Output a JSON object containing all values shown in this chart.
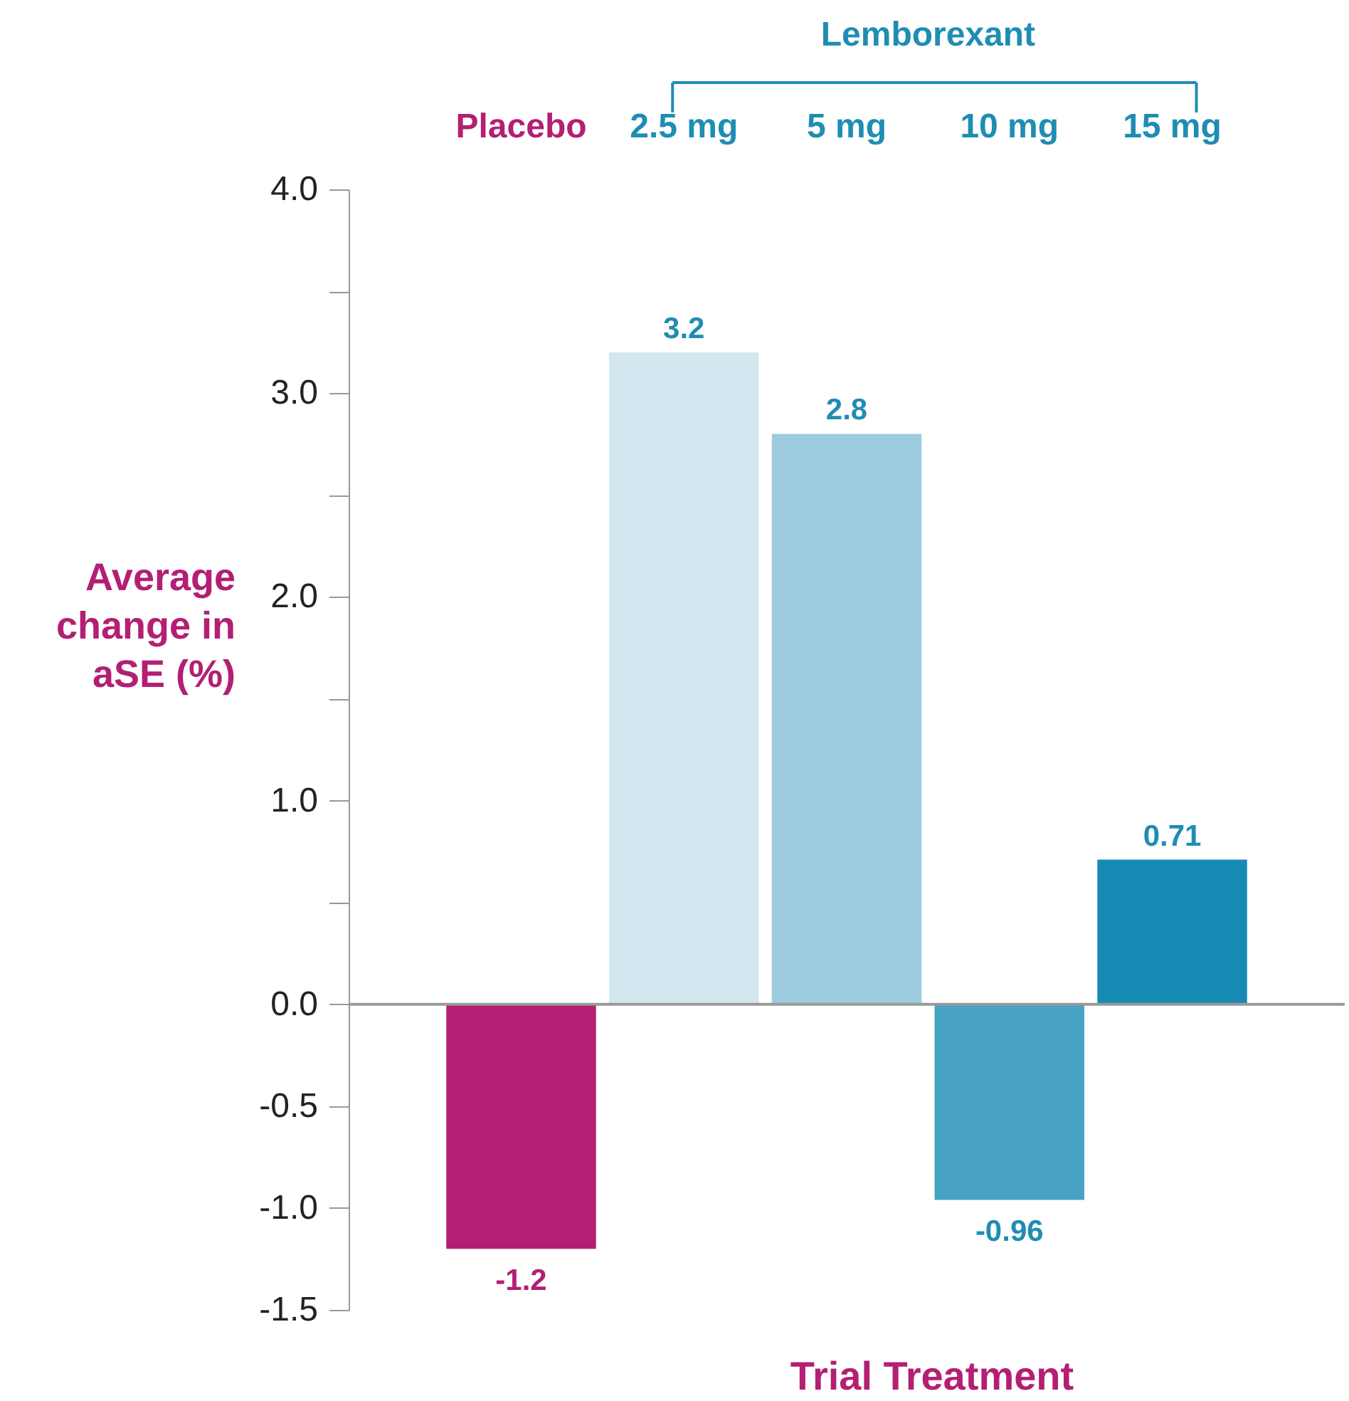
{
  "chart_data": {
    "type": "bar",
    "categories": [
      "Placebo",
      "2.5 mg",
      "5 mg",
      "10 mg",
      "15 mg"
    ],
    "values": [
      -1.2,
      3.2,
      2.8,
      -0.96,
      0.71
    ],
    "colors": [
      "#b31f73",
      "#d3e7f0",
      "#9ccadf",
      "#47a2c4",
      "#168ab5"
    ],
    "ylabel": "Average change in aSE (%)",
    "xlabel": "Trial Treatment",
    "annotations": [
      "Lemborexant"
    ],
    "ylim": [
      -1.5,
      4.0
    ],
    "yticks": [
      {
        "value": -1.5,
        "label": "-1.5"
      },
      {
        "value": -1,
        "label": "-1.0"
      },
      -0.5,
      {
        "value": 0,
        "label": "0.0"
      },
      {
        "value": 0.5,
        "label": null
      },
      {
        "value": 1,
        "label": "1.0"
      },
      {
        "value": 1.5,
        "label": null
      },
      {
        "value": 2,
        "label": "2.0"
      },
      {
        "value": 2.5,
        "label": null
      },
      {
        "value": 3,
        "label": "3.0"
      },
      {
        "value": 3.5,
        "label": null
      },
      {
        "value": 4,
        "label": "4.0"
      }
    ],
    "ref_lines": [
      {
        "axis": "y",
        "value": 0,
        "color": "#999999"
      }
    ],
    "data_labels": true,
    "grid": false
  }
}
